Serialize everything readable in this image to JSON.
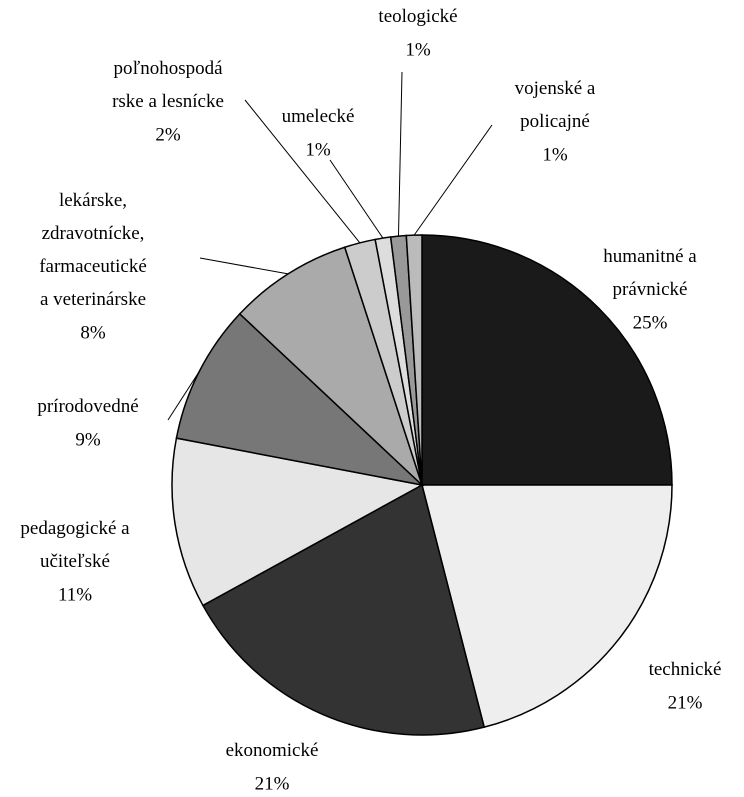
{
  "chart_data": {
    "type": "pie",
    "categories": [
      "humanitné a\nprávnické",
      "technické",
      "ekonomické",
      "pedagogické a\nučiteľské",
      "prírodovedné",
      "lekárske,\nzdravotnícke,\nfarmaceutické\na veterinárske",
      "poľnohospodá\nrske a  lesnícke",
      "umelecké",
      "teologické",
      "vojenské a\npolicajné"
    ],
    "values": [
      25,
      21,
      21,
      11,
      9,
      8,
      2,
      1,
      1,
      1
    ],
    "value_labels": [
      "25%",
      "21%",
      "21%",
      "11%",
      "9%",
      "8%",
      "2%",
      "1%",
      "1%",
      "1%"
    ],
    "colors": [
      "#1a1a1a",
      "#eeeeee",
      "#333333",
      "#e6e6e6",
      "#777777",
      "#aaaaaa",
      "#cccccc",
      "#dddddd",
      "#999999",
      "#bbbbbb"
    ]
  }
}
